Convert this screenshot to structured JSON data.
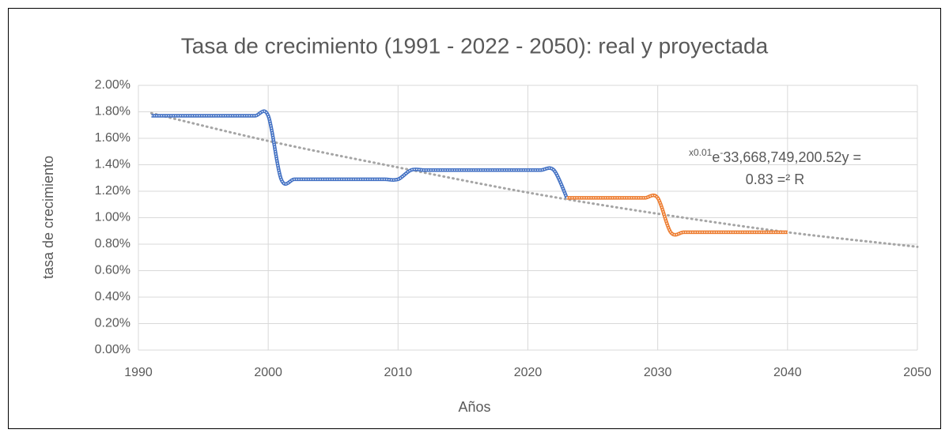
{
  "chart_data": {
    "type": "line",
    "title": "Tasa de crecimiento (1991 - 2022 - 2050): real y proyectada",
    "x_label": "Años",
    "y_label": "tasa de crecimiento",
    "xlim": [
      1990,
      2050
    ],
    "xticks": [
      1990,
      2000,
      2010,
      2020,
      2030,
      2040,
      2050
    ],
    "ylim": [
      0,
      2
    ],
    "yticks": [
      {
        "value": 0,
        "label": "0.00%"
      },
      {
        "value": 0.2,
        "label": "0.20%"
      },
      {
        "value": 0.4,
        "label": "0.40%"
      },
      {
        "value": 0.6,
        "label": "0.60%"
      },
      {
        "value": 0.8,
        "label": "0.80%"
      },
      {
        "value": 1.0,
        "label": "1.00%"
      },
      {
        "value": 1.2,
        "label": "1.20%"
      },
      {
        "value": 1.4,
        "label": "1.40%"
      },
      {
        "value": 1.6,
        "label": "1.60%"
      },
      {
        "value": 1.8,
        "label": "1.80%"
      },
      {
        "value": 2.0,
        "label": "2.00%"
      }
    ],
    "grid": true,
    "series": [
      {
        "color": "#4472c4",
        "x": [
          1991,
          1992,
          1993,
          1994,
          1995,
          1996,
          1997,
          1998,
          1999,
          2000,
          2001,
          2002,
          2003,
          2004,
          2005,
          2006,
          2007,
          2008,
          2009,
          2010,
          2011,
          2012,
          2013,
          2014,
          2015,
          2016,
          2017,
          2018,
          2019,
          2020,
          2021,
          2022,
          2023
        ],
        "values": [
          1.77,
          1.77,
          1.77,
          1.77,
          1.77,
          1.77,
          1.77,
          1.77,
          1.77,
          1.77,
          1.29,
          1.29,
          1.29,
          1.29,
          1.29,
          1.29,
          1.29,
          1.29,
          1.29,
          1.29,
          1.36,
          1.36,
          1.36,
          1.36,
          1.36,
          1.36,
          1.36,
          1.36,
          1.36,
          1.36,
          1.36,
          1.36,
          1.15
        ]
      },
      {
        "color": "#ed7d31",
        "x": [
          2023,
          2024,
          2025,
          2026,
          2027,
          2028,
          2029,
          2030,
          2031,
          2032,
          2033,
          2034,
          2035,
          2036,
          2037,
          2038,
          2039,
          2040
        ],
        "values": [
          1.15,
          1.15,
          1.15,
          1.15,
          1.15,
          1.15,
          1.15,
          1.15,
          0.89,
          0.89,
          0.89,
          0.89,
          0.89,
          0.89,
          0.89,
          0.89,
          0.89,
          0.89
        ]
      }
    ],
    "trendline": {
      "color": "#a5a5a5",
      "x": [
        1991,
        2000,
        2010,
        2020,
        2030,
        2040,
        2050
      ],
      "values": [
        1.79,
        1.58,
        1.38,
        1.19,
        1.03,
        0.89,
        0.78
      ]
    },
    "annotation": {
      "line1": [
        "x0.01",
        "e",
        "-",
        "33,668,749,200.52y ="
      ],
      "line2": "0.83 =² R"
    }
  }
}
